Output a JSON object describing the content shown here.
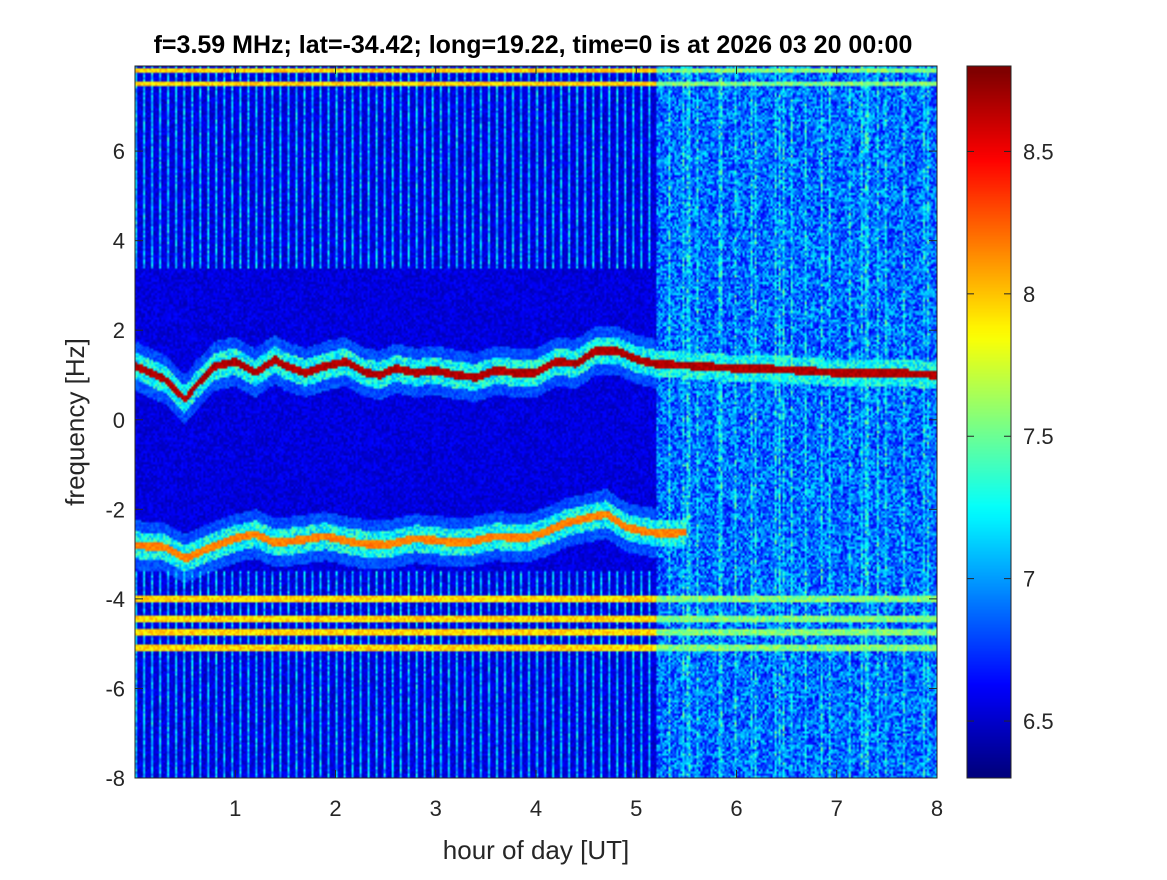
{
  "chart_data": {
    "type": "heatmap",
    "title": "f=3.59 MHz;  lat=-34.42; long=19.22, time=0 is at 2026 03 20 00:00",
    "xlabel": "hour of day [UT]",
    "ylabel": "frequency [Hz]",
    "xlim": [
      0,
      8
    ],
    "ylim": [
      -8,
      7.9
    ],
    "xticks": [
      1,
      2,
      3,
      4,
      5,
      6,
      7,
      8
    ],
    "xtick_labels": [
      "1",
      "2",
      "3",
      "4",
      "5",
      "6",
      "7",
      "8"
    ],
    "yticks": [
      -8,
      -6,
      -4,
      -2,
      0,
      2,
      4,
      6
    ],
    "ytick_labels": [
      "-8",
      "-6",
      "-4",
      "-2",
      "0",
      "2",
      "4",
      "6"
    ],
    "colorbar": {
      "colormap": "jet",
      "range": [
        6.3,
        8.8
      ],
      "ticks": [
        6.5,
        7,
        7.5,
        8,
        8.5
      ],
      "tick_labels": [
        "6.5",
        "7",
        "7.5",
        "8",
        "8.5"
      ]
    },
    "regime_change_hour": 5.2,
    "features": [
      {
        "kind": "ridge",
        "points": [
          [
            0,
            1.2
          ],
          [
            0.3,
            0.9
          ],
          [
            0.5,
            0.45
          ],
          [
            0.6,
            0.75
          ],
          [
            0.8,
            1.2
          ],
          [
            1,
            1.3
          ],
          [
            1.2,
            1.05
          ],
          [
            1.4,
            1.35
          ],
          [
            1.5,
            1.2
          ],
          [
            1.7,
            1.05
          ],
          [
            1.9,
            1.2
          ],
          [
            2.1,
            1.3
          ],
          [
            2.3,
            1.05
          ],
          [
            2.45,
            1.0
          ],
          [
            2.6,
            1.15
          ],
          [
            2.8,
            1.05
          ],
          [
            3.0,
            1.1
          ],
          [
            3.2,
            1.0
          ],
          [
            3.4,
            0.95
          ],
          [
            3.6,
            1.1
          ],
          [
            3.8,
            1.05
          ],
          [
            4.0,
            1.05
          ],
          [
            4.2,
            1.3
          ],
          [
            4.4,
            1.25
          ],
          [
            4.6,
            1.55
          ],
          [
            4.8,
            1.55
          ],
          [
            5.0,
            1.35
          ],
          [
            5.2,
            1.25
          ],
          [
            5.6,
            1.2
          ],
          [
            6.0,
            1.15
          ],
          [
            6.5,
            1.12
          ],
          [
            7.0,
            1.05
          ],
          [
            7.5,
            1.05
          ],
          [
            8.0,
            1.0
          ]
        ],
        "value": 8.6
      },
      {
        "kind": "ridge",
        "points": [
          [
            0,
            -2.8
          ],
          [
            0.3,
            -2.85
          ],
          [
            0.5,
            -3.1
          ],
          [
            0.7,
            -2.9
          ],
          [
            1.0,
            -2.65
          ],
          [
            1.2,
            -2.55
          ],
          [
            1.4,
            -2.75
          ],
          [
            1.6,
            -2.7
          ],
          [
            1.9,
            -2.6
          ],
          [
            2.2,
            -2.75
          ],
          [
            2.5,
            -2.8
          ],
          [
            2.8,
            -2.65
          ],
          [
            3.0,
            -2.7
          ],
          [
            3.3,
            -2.75
          ],
          [
            3.6,
            -2.6
          ],
          [
            3.9,
            -2.65
          ],
          [
            4.1,
            -2.5
          ],
          [
            4.3,
            -2.3
          ],
          [
            4.5,
            -2.2
          ],
          [
            4.7,
            -2.1
          ],
          [
            4.9,
            -2.4
          ],
          [
            5.1,
            -2.5
          ],
          [
            5.3,
            -2.55
          ],
          [
            5.5,
            -2.5
          ]
        ],
        "value": 8.1
      },
      {
        "kind": "bands",
        "freqs": [
          -4.0,
          -4.45,
          -4.75,
          -5.1,
          7.5,
          7.8
        ],
        "value": 7.8
      }
    ]
  }
}
